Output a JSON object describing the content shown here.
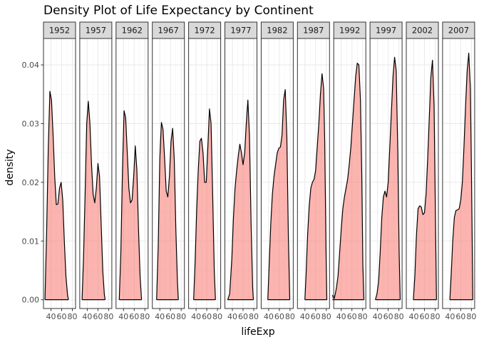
{
  "chart_data": {
    "type": "area",
    "title": "Density Plot of Life Expectancy by Continent",
    "xlabel": "lifeExp",
    "ylabel": "density",
    "facet_labels": [
      "1952",
      "1957",
      "1962",
      "1967",
      "1972",
      "1977",
      "1982",
      "1987",
      "1992",
      "1997",
      "2002",
      "2007"
    ],
    "x_ticks": [
      40,
      60,
      80
    ],
    "y_ticks": [
      0.0,
      0.01,
      0.02,
      0.03,
      0.04
    ],
    "y_tick_labels": [
      "0.00",
      "0.01",
      "0.02",
      "0.03",
      "0.04"
    ],
    "xlim": [
      26,
      86
    ],
    "ylim": [
      -0.0015,
      0.0445
    ],
    "fill_color": "#F8766D",
    "line_color": "#000000",
    "panels": [
      {
        "year": "1952",
        "x": [
          28.8,
          32,
          35,
          38,
          41,
          44,
          47,
          50,
          53,
          56,
          59,
          62,
          65,
          68,
          71,
          72.7
        ],
        "y": [
          0.0,
          0.012,
          0.026,
          0.0355,
          0.034,
          0.028,
          0.021,
          0.0162,
          0.0163,
          0.019,
          0.02,
          0.017,
          0.01,
          0.004,
          0.0008,
          0.0
        ]
      },
      {
        "year": "1957",
        "x": [
          30.3,
          33,
          36,
          39,
          42,
          45,
          48,
          51,
          54,
          57,
          60,
          63,
          66,
          69,
          72,
          73.5
        ],
        "y": [
          0.0,
          0.007,
          0.018,
          0.03,
          0.0338,
          0.03,
          0.023,
          0.018,
          0.0165,
          0.019,
          0.0232,
          0.021,
          0.013,
          0.005,
          0.0009,
          0.0
        ]
      },
      {
        "year": "1962",
        "x": [
          32,
          35,
          38,
          41,
          44,
          47,
          50,
          53,
          56,
          59,
          62,
          65,
          68,
          71,
          73.7
        ],
        "y": [
          0.0,
          0.008,
          0.022,
          0.0322,
          0.031,
          0.025,
          0.019,
          0.0165,
          0.017,
          0.021,
          0.0262,
          0.022,
          0.012,
          0.004,
          0.0
        ]
      },
      {
        "year": "1967",
        "x": [
          34,
          37,
          40,
          43,
          46,
          49,
          52,
          55,
          58,
          61,
          64,
          67,
          70,
          73,
          74.7
        ],
        "y": [
          0.0,
          0.009,
          0.024,
          0.0302,
          0.029,
          0.024,
          0.0185,
          0.0175,
          0.021,
          0.027,
          0.0292,
          0.024,
          0.012,
          0.003,
          0.0
        ]
      },
      {
        "year": "1972",
        "x": [
          35.4,
          38,
          41,
          44,
          47,
          50,
          53,
          56,
          59,
          62,
          65,
          68,
          71,
          74,
          76.2
        ],
        "y": [
          0.0,
          0.006,
          0.015,
          0.022,
          0.027,
          0.0275,
          0.025,
          0.02,
          0.02,
          0.026,
          0.0325,
          0.03,
          0.018,
          0.005,
          0.0
        ]
      },
      {
        "year": "1977",
        "x": [
          31.2,
          35,
          39,
          42,
          45,
          48,
          51,
          54,
          57,
          60,
          63,
          66,
          69,
          72,
          75,
          78,
          79.3
        ],
        "y": [
          0.0,
          0.001,
          0.007,
          0.014,
          0.019,
          0.022,
          0.0245,
          0.0265,
          0.025,
          0.023,
          0.025,
          0.03,
          0.034,
          0.028,
          0.013,
          0.002,
          0.0
        ]
      },
      {
        "year": "1982",
        "x": [
          38.4,
          41,
          44,
          47,
          50,
          53,
          56,
          59,
          62,
          65,
          68,
          71,
          74,
          77,
          79.5
        ],
        "y": [
          0.0,
          0.006,
          0.013,
          0.018,
          0.021,
          0.023,
          0.025,
          0.0258,
          0.026,
          0.028,
          0.034,
          0.0358,
          0.028,
          0.01,
          0.0
        ]
      },
      {
        "year": "1987",
        "x": [
          39.9,
          42,
          45,
          48,
          51,
          54,
          57,
          60,
          63,
          66,
          69,
          72,
          75,
          77,
          79.5,
          81
        ],
        "y": [
          0.0,
          0.004,
          0.011,
          0.016,
          0.019,
          0.02,
          0.0205,
          0.022,
          0.026,
          0.03,
          0.035,
          0.0385,
          0.036,
          0.027,
          0.008,
          0.0
        ]
      },
      {
        "year": "1992",
        "x": [
          23.6,
          25,
          27,
          28.5,
          31,
          34,
          37,
          40,
          43,
          46,
          49,
          52,
          55,
          58,
          61,
          64,
          67,
          70,
          73,
          76,
          78.5,
          80.5,
          82.5
        ],
        "y": [
          0.0008,
          0.0004,
          0.0002,
          0.0008,
          0.002,
          0.004,
          0.008,
          0.012,
          0.0155,
          0.0175,
          0.019,
          0.0205,
          0.023,
          0.026,
          0.03,
          0.034,
          0.038,
          0.0403,
          0.04,
          0.034,
          0.021,
          0.006,
          0.0
        ]
      },
      {
        "year": "1997",
        "x": [
          36.1,
          39,
          42,
          45,
          48,
          51,
          54,
          57,
          60,
          63,
          66,
          69,
          72,
          75,
          78,
          80.5,
          82.5
        ],
        "y": [
          0.0,
          0.001,
          0.003,
          0.008,
          0.014,
          0.0175,
          0.0185,
          0.0175,
          0.02,
          0.026,
          0.032,
          0.038,
          0.0413,
          0.039,
          0.025,
          0.008,
          0.0
        ]
      },
      {
        "year": "2002",
        "x": [
          39.2,
          42,
          45,
          48,
          51,
          54,
          57,
          60,
          63,
          66,
          69,
          72,
          75,
          78,
          80.5,
          82.5
        ],
        "y": [
          0.0,
          0.004,
          0.011,
          0.0155,
          0.016,
          0.0158,
          0.0145,
          0.0148,
          0.018,
          0.024,
          0.031,
          0.038,
          0.0408,
          0.033,
          0.014,
          0.0
        ]
      },
      {
        "year": "2007",
        "x": [
          39.6,
          42,
          45,
          48,
          51,
          54,
          57,
          60,
          63,
          66,
          69,
          72,
          75,
          78,
          80,
          82.6
        ],
        "y": [
          0.0,
          0.004,
          0.01,
          0.014,
          0.0152,
          0.0153,
          0.0155,
          0.017,
          0.02,
          0.026,
          0.033,
          0.039,
          0.042,
          0.036,
          0.022,
          0.0
        ]
      }
    ]
  }
}
